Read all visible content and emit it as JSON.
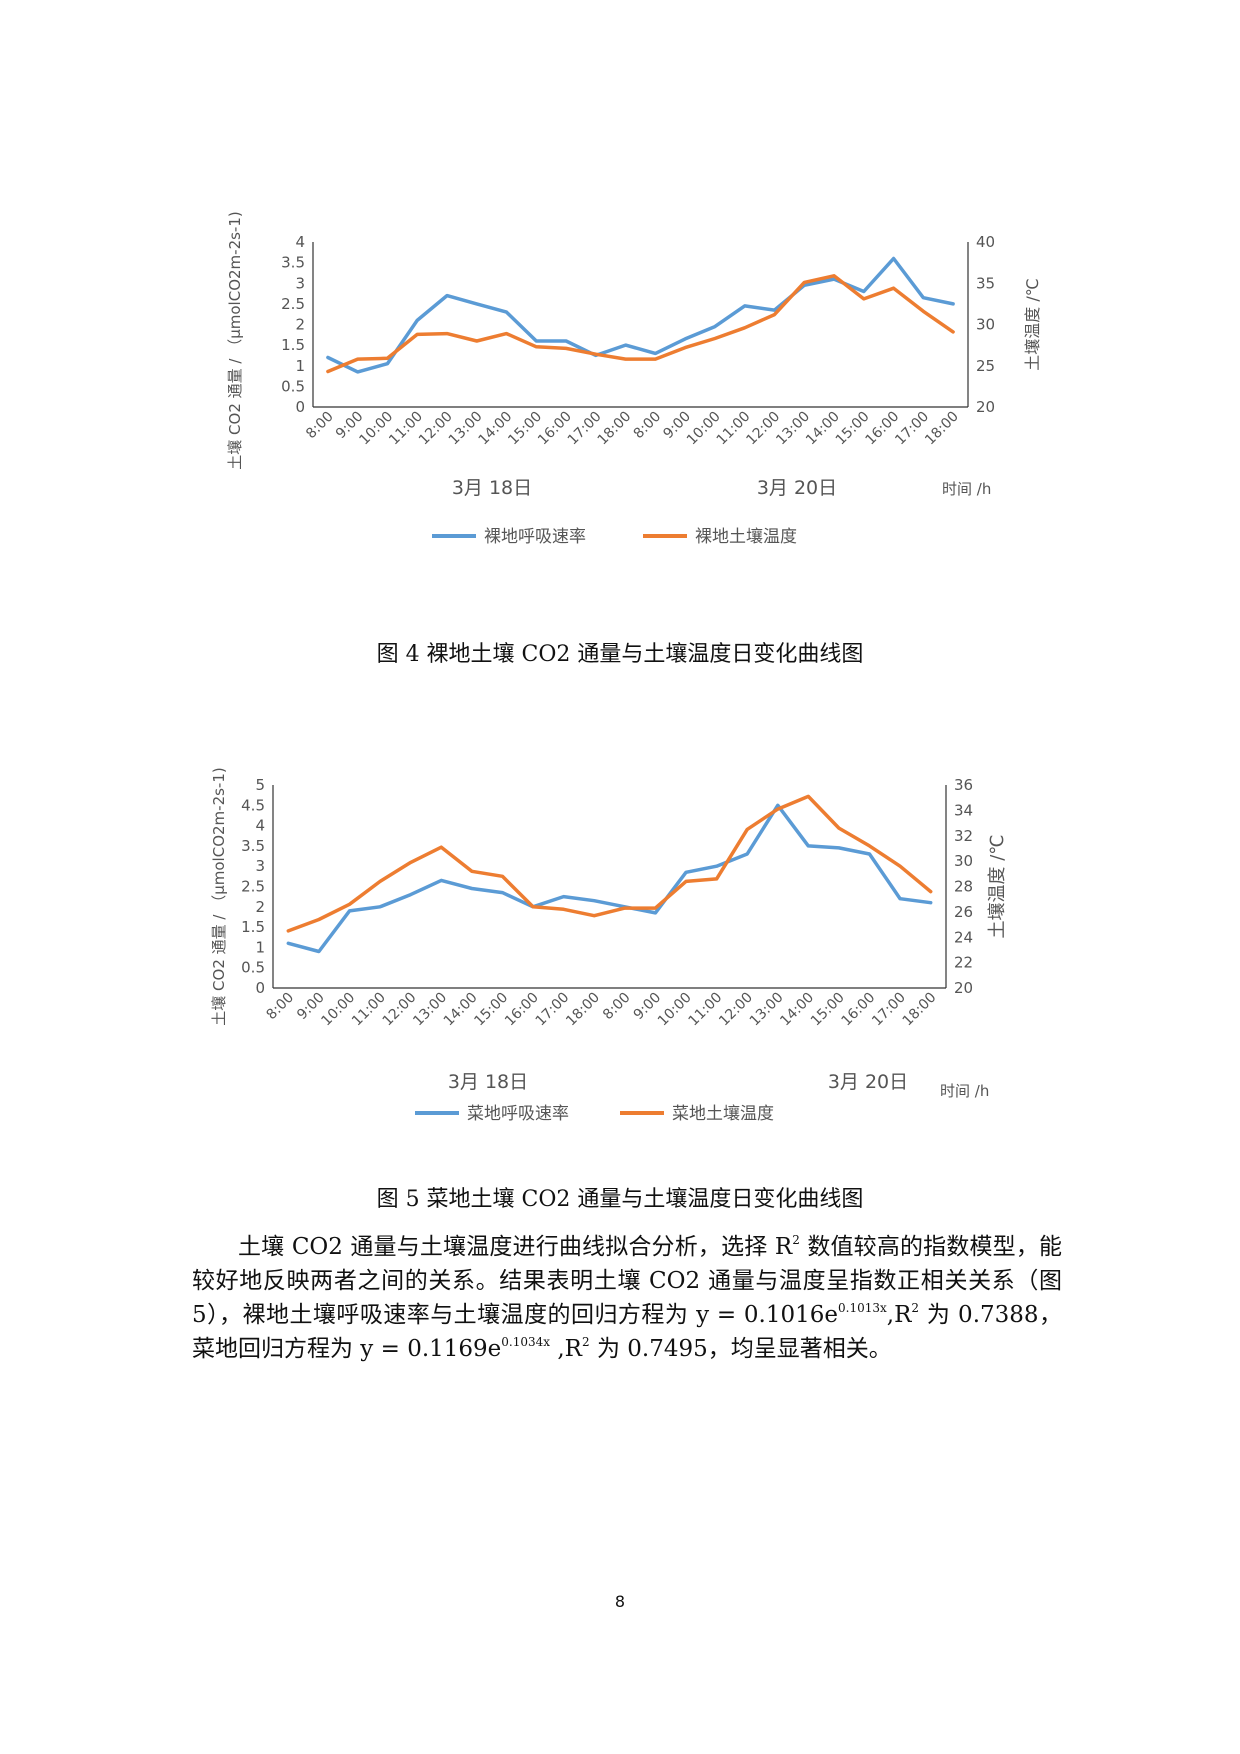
{
  "charts": [
    {
      "type": "line",
      "categories": [
        "8:00",
        "9:00",
        "10:00",
        "11:00",
        "12:00",
        "13:00",
        "14:00",
        "15:00",
        "16:00",
        "17:00",
        "18:00",
        "8:00",
        "9:00",
        "10:00",
        "11:00",
        "12:00",
        "13:00",
        "14:00",
        "15:00",
        "16:00",
        "17:00",
        "18:00"
      ],
      "series": [
        {
          "name": "裸地呼吸速率",
          "axis": "left",
          "color": "#5b9bd5",
          "values": [
            1.2,
            0.85,
            1.05,
            2.1,
            2.7,
            2.5,
            2.3,
            1.6,
            1.6,
            1.25,
            1.5,
            1.3,
            1.65,
            1.95,
            2.45,
            2.35,
            2.95,
            3.1,
            2.8,
            3.6,
            2.65,
            2.5
          ]
        },
        {
          "name": "裸地土壤温度",
          "axis": "right",
          "color": "#ed7d31",
          "values": [
            24.3,
            25.8,
            25.9,
            28.8,
            28.9,
            28.0,
            28.9,
            27.3,
            27.1,
            26.4,
            25.8,
            25.8,
            27.2,
            28.3,
            29.6,
            31.2,
            35.1,
            35.9,
            33.1,
            34.4,
            31.6,
            29.1
          ]
        }
      ],
      "y_left": {
        "label": "土壤 CO2 通量 / （μmolCO2m-2s-1)",
        "min": 0,
        "max": 4,
        "ticks": [
          "0",
          "0.5",
          "1",
          "1.5",
          "2",
          "2.5",
          "3",
          "3.5",
          "4"
        ]
      },
      "y_right": {
        "label": "土壤温度 /℃",
        "min": 20,
        "max": 40,
        "ticks": [
          "20",
          "25",
          "30",
          "35",
          "40"
        ]
      },
      "date_labels": [
        "3月 18日",
        "3月 20日"
      ],
      "x_unit_label": "时间 /h"
    },
    {
      "type": "line",
      "categories": [
        "8:00",
        "9:00",
        "10:00",
        "11:00",
        "12:00",
        "13:00",
        "14:00",
        "15:00",
        "16:00",
        "17:00",
        "18:00",
        "8:00",
        "9:00",
        "10:00",
        "11:00",
        "12:00",
        "13:00",
        "14:00",
        "15:00",
        "16:00",
        "17:00",
        "18:00"
      ],
      "series": [
        {
          "name": "菜地呼吸速率",
          "axis": "left",
          "color": "#5b9bd5",
          "values": [
            1.1,
            0.9,
            1.9,
            2.0,
            2.3,
            2.65,
            2.45,
            2.35,
            2.0,
            2.25,
            2.15,
            2.0,
            1.85,
            2.85,
            3.0,
            3.3,
            4.5,
            3.5,
            3.45,
            3.3,
            2.2,
            2.1
          ]
        },
        {
          "name": "菜地土壤温度",
          "axis": "right",
          "color": "#ed7d31",
          "values": [
            24.5,
            25.4,
            26.6,
            28.4,
            29.9,
            31.1,
            29.2,
            28.8,
            26.4,
            26.2,
            25.7,
            26.3,
            26.3,
            28.4,
            28.6,
            32.5,
            34.1,
            35.1,
            32.6,
            31.2,
            29.6,
            27.6
          ]
        }
      ],
      "y_left": {
        "label": "土壤 CO2 通量 / （μmolCO2m-2s-1)",
        "min": 0,
        "max": 5,
        "ticks": [
          "0",
          "0.5",
          "1",
          "1.5",
          "2",
          "2.5",
          "3",
          "3.5",
          "4",
          "4.5",
          "5"
        ]
      },
      "y_right": {
        "label": "土壤温度 /℃",
        "min": 20,
        "max": 36,
        "ticks": [
          "20",
          "22",
          "24",
          "26",
          "28",
          "30",
          "32",
          "34",
          "36"
        ]
      },
      "date_labels": [
        "3月 18日",
        "3月 20日"
      ],
      "x_unit_label": "时间 /h"
    }
  ],
  "captions": {
    "fig4": "图 4 裸地土壤 CO2 通量与土壤温度日变化曲线图",
    "fig5": "图 5 菜地土壤 CO2 通量与土壤温度日变化曲线图"
  },
  "paragraph": {
    "p1": "土壤 CO2 通量与土壤温度进行曲线拟合分析，选择 R",
    "sup1": "2",
    "p2": " 数值较高的指数模型，能较好地反映两者之间的关系。结果表明土壤 CO2 通量与温度呈指数正相关关系（图 5），裸地土壤呼吸速率与土壤温度的回归方程为 y = 0.1016e",
    "sup2": "0.1013x",
    "p3": ",R",
    "sup3": "2",
    "p4": " 为 0.7388，菜地回归方程为 y = 0.1169e",
    "sup4": "0.1034x",
    "p5": " ,R",
    "sup5": "2",
    "p6": " 为 0.7495，均呈显著相关。"
  },
  "page_number": "8"
}
